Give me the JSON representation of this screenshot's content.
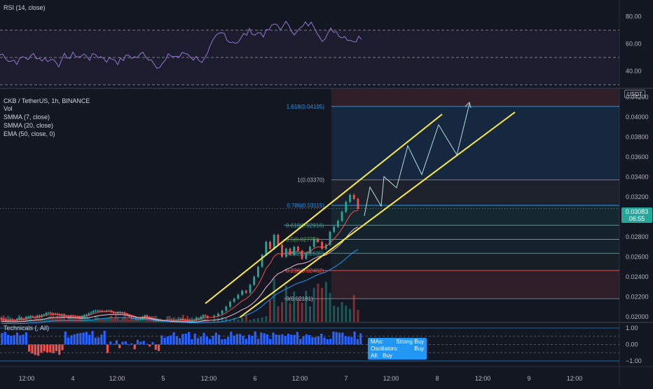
{
  "panes": {
    "rsi": {
      "title": "RSI (14, close)",
      "ticks": [
        "80.00",
        "60.00",
        "40.00"
      ]
    },
    "main": {
      "title": "CKB / TetherUS, 1h, BINANCE",
      "legend": [
        "Vol",
        "SMMA (7, close)",
        "SMMA (20, close)",
        "EMA (50, close, 0)"
      ],
      "currency_label": "USDT",
      "price_ticks": [
        "0.04200",
        "0.04000",
        "0.03800",
        "0.03600",
        "0.03400",
        "0.03200",
        "0.02800",
        "0.02600",
        "0.02400",
        "0.02200",
        "0.02000"
      ],
      "last_price": {
        "value": "0.03083",
        "countdown": "06:55"
      }
    },
    "technicals": {
      "title": "Technicals (, All)",
      "ticks": [
        "1.00",
        "0.00",
        "−1.00"
      ]
    }
  },
  "technicals_box": {
    "mas_label": "MAs:",
    "mas_value": "Strong Buy",
    "osc_label": "Oscillators:",
    "osc_value": "Buy",
    "all_label": "All:",
    "all_value": "Buy"
  },
  "time_axis": [
    "12:00",
    "4",
    "12:00",
    "5",
    "12:00",
    "6",
    "12:00",
    "7",
    "12:00",
    "8",
    "12:00",
    "9",
    "12:00"
  ],
  "colors": {
    "bg": "#131722",
    "up": "#26a69a",
    "down": "#ef5350",
    "channel": "#ffeb3b",
    "fib_blue": "#2196f3",
    "rsi_line": "#9575cd",
    "accent": "#2196f3"
  },
  "chart_data": {
    "type": "candlestick",
    "symbol": "CKB / TetherUS",
    "interval": "1h",
    "exchange": "BINANCE",
    "y_range": [
      0.0195,
      0.0428
    ],
    "last_price": 0.03083,
    "fibonacci_levels": [
      {
        "label": "1.618(0.04105)",
        "value": 0.04105
      },
      {
        "label": "1(0.03370)",
        "value": 0.0337
      },
      {
        "label": "0.786(0.03115)",
        "value": 0.03115
      },
      {
        "label": "0.618(0.02916)",
        "value": 0.02916
      },
      {
        "label": "0.5(0.02775)",
        "value": 0.02775
      },
      {
        "label": "0.382(0.02635)",
        "value": 0.02635
      },
      {
        "label": "0.236(0.02462)",
        "value": 0.02462
      },
      {
        "label": "0(0.02181)",
        "value": 0.02181
      }
    ],
    "rsi": {
      "range": [
        30,
        90
      ],
      "levels": [
        70,
        50,
        30
      ]
    },
    "technicals_range": [
      -1.3,
      1.3
    ]
  }
}
